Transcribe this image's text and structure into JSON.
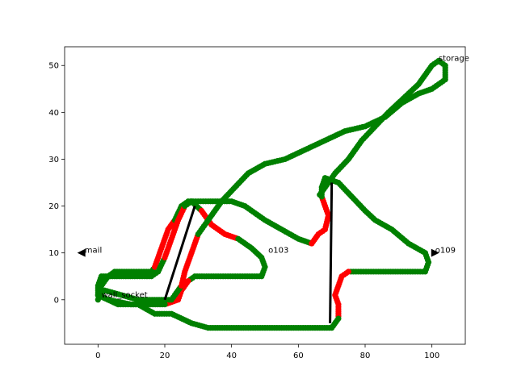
{
  "chart_data": {
    "type": "scatter",
    "title": "",
    "xlabel": "",
    "ylabel": "",
    "xlim": [
      -10,
      110
    ],
    "ylim": [
      -9.5,
      54
    ],
    "x_ticks": [
      0,
      20,
      40,
      60,
      80,
      100
    ],
    "y_ticks": [
      0,
      10,
      20,
      30,
      40,
      50
    ],
    "grid": false,
    "colors": {
      "path_ok": "#008000",
      "path_bad": "#ff0000",
      "walls": "#000000",
      "markers": "#000000"
    },
    "path": [
      [
        0,
        0
      ],
      [
        1,
        3
      ],
      [
        3,
        5
      ],
      [
        5,
        6
      ],
      [
        10,
        6
      ],
      [
        16,
        6
      ],
      [
        17,
        7
      ],
      [
        19,
        11
      ],
      [
        21,
        15
      ],
      [
        23,
        17
      ],
      [
        25,
        20
      ],
      [
        27,
        21
      ],
      [
        33,
        21
      ],
      [
        40,
        21
      ],
      [
        44,
        20
      ],
      [
        50,
        17
      ],
      [
        55,
        15
      ],
      [
        60,
        13
      ],
      [
        64,
        12
      ],
      [
        66,
        14
      ],
      [
        68,
        15
      ],
      [
        69,
        18
      ],
      [
        68,
        20
      ],
      [
        67,
        22
      ],
      [
        67,
        24
      ],
      [
        68,
        26
      ],
      [
        72,
        25
      ],
      [
        76,
        22
      ],
      [
        80,
        19
      ],
      [
        83,
        17
      ],
      [
        88,
        15
      ],
      [
        93,
        12
      ],
      [
        98,
        10
      ],
      [
        99,
        8
      ],
      [
        98,
        6
      ],
      [
        92,
        6
      ],
      [
        84,
        6
      ],
      [
        75,
        6
      ],
      [
        73,
        5
      ],
      [
        72,
        3
      ],
      [
        71,
        1
      ],
      [
        72,
        -1
      ],
      [
        72,
        -4
      ],
      [
        70,
        -6
      ],
      [
        60,
        -6
      ],
      [
        50,
        -6
      ],
      [
        40,
        -6
      ],
      [
        33,
        -6
      ],
      [
        28,
        -5
      ],
      [
        22,
        -3
      ],
      [
        17,
        -3
      ],
      [
        12,
        -1
      ],
      [
        6,
        -1
      ],
      [
        3,
        0
      ],
      [
        0,
        1
      ],
      [
        0,
        3
      ],
      [
        1,
        5
      ],
      [
        3,
        5
      ],
      [
        7,
        5
      ],
      [
        11,
        5
      ],
      [
        14,
        5
      ],
      [
        16,
        5
      ],
      [
        18,
        6
      ],
      [
        20,
        9
      ],
      [
        22,
        13
      ],
      [
        24,
        17
      ],
      [
        26,
        20
      ],
      [
        28,
        21
      ],
      [
        31,
        19
      ],
      [
        34,
        16
      ],
      [
        38,
        14
      ],
      [
        42,
        13
      ],
      [
        46,
        11
      ],
      [
        49,
        9
      ],
      [
        50,
        7
      ],
      [
        49,
        5
      ],
      [
        44,
        5
      ],
      [
        36,
        5
      ],
      [
        29,
        5
      ],
      [
        27,
        4
      ],
      [
        25,
        2
      ],
      [
        24,
        0
      ],
      [
        20,
        -1
      ],
      [
        10,
        -1
      ],
      [
        3,
        0
      ],
      [
        0,
        1
      ],
      [
        2,
        2
      ],
      [
        7,
        1
      ],
      [
        12,
        0
      ],
      [
        19,
        0
      ],
      [
        22,
        0
      ],
      [
        23,
        1
      ],
      [
        25,
        3
      ],
      [
        26,
        6
      ],
      [
        28,
        10
      ],
      [
        30,
        14
      ],
      [
        33,
        17
      ],
      [
        37,
        21
      ],
      [
        41,
        24
      ],
      [
        45,
        27
      ],
      [
        50,
        29
      ],
      [
        56,
        30
      ],
      [
        62,
        32
      ],
      [
        68,
        34
      ],
      [
        74,
        36
      ],
      [
        80,
        37
      ],
      [
        86,
        39
      ],
      [
        91,
        42
      ],
      [
        96,
        44
      ],
      [
        100,
        45
      ],
      [
        102,
        46
      ],
      [
        104,
        47
      ],
      [
        104,
        50
      ],
      [
        102,
        51
      ],
      [
        100,
        50
      ],
      [
        98,
        48
      ],
      [
        96,
        46
      ],
      [
        93,
        44
      ],
      [
        90,
        42
      ],
      [
        87,
        40
      ],
      [
        83,
        37
      ],
      [
        79,
        34
      ],
      [
        75,
        30
      ],
      [
        71,
        27
      ],
      [
        68,
        24
      ],
      [
        66,
        22
      ]
    ],
    "path_status": [
      "ok",
      "ok",
      "ok",
      "ok",
      "ok",
      "ok",
      "bad",
      "bad",
      "bad",
      "ok",
      "ok",
      "ok",
      "ok",
      "ok",
      "ok",
      "ok",
      "ok",
      "ok",
      "bad",
      "bad",
      "bad",
      "bad",
      "bad",
      "ok",
      "ok",
      "ok",
      "ok",
      "ok",
      "ok",
      "ok",
      "ok",
      "ok",
      "ok",
      "ok",
      "ok",
      "ok",
      "ok",
      "bad",
      "bad",
      "bad",
      "bad",
      "bad",
      "ok",
      "ok",
      "ok",
      "ok",
      "ok",
      "ok",
      "ok",
      "ok",
      "ok",
      "ok",
      "ok",
      "ok",
      "ok",
      "ok",
      "ok",
      "ok",
      "ok",
      "ok",
      "ok",
      "ok",
      "ok",
      "bad",
      "bad",
      "bad",
      "ok",
      "ok",
      "bad",
      "bad",
      "bad",
      "ok",
      "ok",
      "ok",
      "ok",
      "ok",
      "ok",
      "ok",
      "ok",
      "bad",
      "bad",
      "bad",
      "ok",
      "ok",
      "ok",
      "ok",
      "ok",
      "ok",
      "ok",
      "ok",
      "ok",
      "ok",
      "bad",
      "bad",
      "bad",
      "ok",
      "ok",
      "ok",
      "ok",
      "ok",
      "ok",
      "ok",
      "ok",
      "ok",
      "ok",
      "ok",
      "ok",
      "ok",
      "ok",
      "ok",
      "ok",
      "ok",
      "ok",
      "ok",
      "ok",
      "ok",
      "ok",
      "ok",
      "ok",
      "ok",
      "ok",
      "ok",
      "ok",
      "ok",
      "ok",
      "ok",
      "ok",
      "ok"
    ],
    "walls": [
      {
        "from": [
          20,
          0
        ],
        "to": [
          29,
          20
        ]
      },
      {
        "from": [
          69.5,
          -5
        ],
        "to": [
          70,
          25
        ]
      }
    ],
    "annotations": [
      {
        "text": "storage",
        "x": 102,
        "y": 51
      },
      {
        "text": "mail",
        "x": -4,
        "y": 10
      },
      {
        "text": "o103",
        "x": 51,
        "y": 10
      },
      {
        "text": "o109",
        "x": 101,
        "y": 10
      },
      {
        "text": "wall_socket",
        "x": 1,
        "y": 0.5
      }
    ],
    "markers": [
      {
        "name": "mail",
        "x": -5,
        "y": 10,
        "direction": "left"
      },
      {
        "name": "o109",
        "x": 101,
        "y": 10,
        "direction": "right"
      }
    ]
  }
}
